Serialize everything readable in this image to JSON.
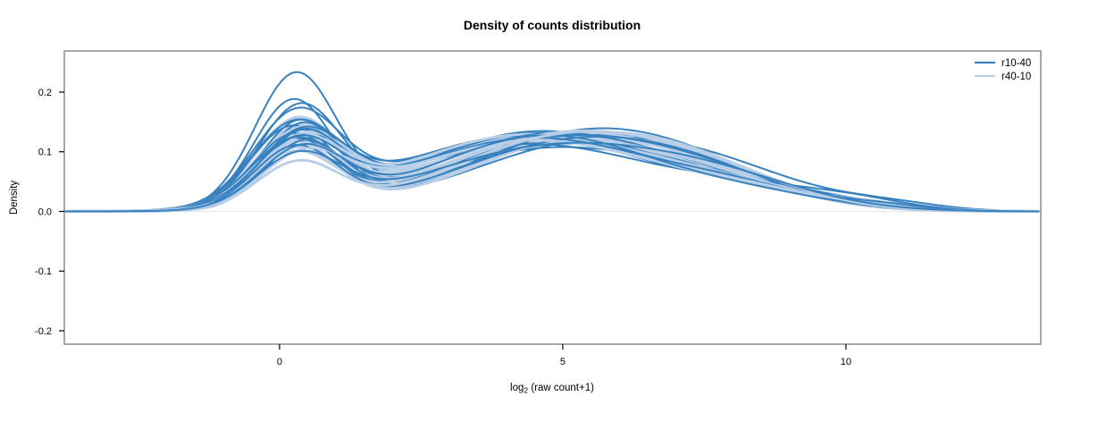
{
  "title": "Density of counts distribution",
  "chart_data": {
    "type": "line",
    "subtype": "density-curves-overlay",
    "title": "Density of counts distribution",
    "xlabel": {
      "prefix": "log",
      "sub": "2",
      "suffix": " (raw count+1)"
    },
    "ylabel": "Density",
    "xlim": [
      -3.8,
      13.44
    ],
    "ylim": [
      -0.2225,
      0.2689
    ],
    "xticks": [
      {
        "label": "0",
        "value": 0
      },
      {
        "label": "5",
        "value": 5
      },
      {
        "label": "10",
        "value": 10
      }
    ],
    "yticks": [
      {
        "label": "0.2",
        "value": 0.2
      },
      {
        "label": "0.1",
        "value": 0.1
      },
      {
        "label": "0.0",
        "value": 0.0
      },
      {
        "label": "-0.1",
        "value": -0.1
      },
      {
        "label": "-0.2",
        "value": -0.2
      }
    ],
    "grid": false,
    "zero_line": {
      "value": 0.0,
      "color": "#e8e8e8"
    },
    "frame_color": "#8c8c8c",
    "legend": {
      "position": "top-right",
      "box": false,
      "entries": [
        {
          "label": "r10-40",
          "color": "#3781bf"
        },
        {
          "label": "r40-10",
          "color": "#b9cfe7"
        }
      ]
    },
    "curve_model": "density(x) = A*exp(-((x-mA)^2)/(2*sA^2)) + B*exp(-((x-mB)^2)/(2*sB^2)) + C*exp(-((x-mC)^2)/(2*sC^2)) + D*exp(-((x-mD)^2)/(2*sD^2)); params per curve = [A,mA,sA,B,mB,sB,C,mC,sC,D,mD,sD]",
    "series": [
      {
        "name": "r10-40",
        "color": "#3781bf",
        "line_width": 2.0,
        "curves": [
          [
            0.222,
            0.28,
            0.72,
            0.105,
            4.8,
            2.15,
            0.028,
            8.0,
            1.45,
            0,
            10,
            0.8
          ],
          [
            0.182,
            0.24,
            0.7,
            0.112,
            5.0,
            2.0,
            0.024,
            8.2,
            1.4,
            0,
            10,
            0.8
          ],
          [
            0.17,
            0.36,
            0.74,
            0.118,
            4.9,
            2.1,
            0.022,
            8.5,
            1.3,
            0.008,
            10.5,
            0.8
          ],
          [
            0.148,
            0.3,
            0.76,
            0.124,
            4.4,
            2.3,
            0.03,
            7.8,
            1.55,
            0,
            10,
            0.8
          ],
          [
            0.143,
            0.42,
            0.71,
            0.118,
            5.1,
            1.95,
            0.021,
            8.1,
            1.25,
            0.006,
            10.0,
            0.7
          ],
          [
            0.138,
            0.22,
            0.75,
            0.119,
            5.2,
            2.05,
            0.034,
            7.6,
            1.5,
            0,
            10,
            0.8
          ],
          [
            0.135,
            0.33,
            0.7,
            0.134,
            4.6,
            2.15,
            0.023,
            8.3,
            1.4,
            0,
            10,
            0.8
          ],
          [
            0.132,
            0.45,
            0.74,
            0.11,
            5.4,
            2.1,
            0.038,
            7.9,
            1.6,
            0.01,
            10.8,
            0.9
          ],
          [
            0.128,
            0.26,
            0.77,
            0.127,
            4.3,
            2.25,
            0.026,
            8.6,
            1.3,
            0,
            10,
            0.8
          ],
          [
            0.125,
            0.38,
            0.71,
            0.121,
            5.0,
            2.15,
            0.031,
            7.7,
            1.5,
            0,
            10,
            0.8
          ],
          [
            0.122,
            0.24,
            0.73,
            0.117,
            4.9,
            2.05,
            0.028,
            8.1,
            1.45,
            0.007,
            9.8,
            0.8
          ],
          [
            0.12,
            0.41,
            0.76,
            0.131,
            4.6,
            2.2,
            0.022,
            8.4,
            1.35,
            0,
            10,
            0.8
          ],
          [
            0.117,
            0.3,
            0.74,
            0.125,
            5.3,
            2.0,
            0.033,
            7.5,
            1.55,
            0,
            10,
            0.8
          ],
          [
            0.114,
            0.36,
            0.72,
            0.113,
            4.4,
            2.3,
            0.027,
            8.7,
            1.4,
            0.009,
            10.3,
            0.85
          ],
          [
            0.112,
            0.26,
            0.78,
            0.129,
            4.8,
            2.1,
            0.024,
            8.0,
            1.5,
            0,
            10,
            0.8
          ],
          [
            0.11,
            0.44,
            0.7,
            0.119,
            5.0,
            2.05,
            0.035,
            7.8,
            1.6,
            0,
            10,
            0.8
          ],
          [
            0.107,
            0.32,
            0.75,
            0.123,
            4.5,
            2.2,
            0.026,
            8.2,
            1.3,
            0,
            10,
            0.8
          ],
          [
            0.104,
            0.28,
            0.73,
            0.115,
            5.2,
            2.1,
            0.03,
            7.6,
            1.5,
            0.008,
            10.6,
            0.75
          ],
          [
            0.1,
            0.4,
            0.76,
            0.127,
            4.7,
            2.0,
            0.021,
            8.5,
            1.4,
            0,
            10,
            0.8
          ],
          [
            0.087,
            0.34,
            0.74,
            0.109,
            4.9,
            2.25,
            0.032,
            7.9,
            1.55,
            0,
            10,
            0.8
          ]
        ]
      },
      {
        "name": "r40-10",
        "color": "#b9cfe7",
        "line_width": 2.9,
        "curves": [
          [
            0.142,
            0.3,
            0.74,
            0.119,
            4.6,
            2.15,
            0.025,
            8.1,
            1.4,
            0,
            10,
            0.8
          ],
          [
            0.137,
            0.38,
            0.71,
            0.114,
            4.9,
            2.05,
            0.03,
            7.7,
            1.5,
            0,
            10,
            0.8
          ],
          [
            0.132,
            0.26,
            0.76,
            0.124,
            4.4,
            2.25,
            0.022,
            8.4,
            1.35,
            0,
            10,
            0.8
          ],
          [
            0.132,
            0.42,
            0.72,
            0.129,
            5.1,
            2.1,
            0.028,
            7.9,
            1.5,
            0,
            10,
            0.8
          ],
          [
            0.127,
            0.33,
            0.75,
            0.117,
            4.7,
            2.3,
            0.033,
            7.5,
            1.6,
            0,
            10,
            0.8
          ],
          [
            0.127,
            0.28,
            0.73,
            0.121,
            5.3,
            2.0,
            0.024,
            8.2,
            1.4,
            0.007,
            10.2,
            0.8
          ],
          [
            0.122,
            0.36,
            0.77,
            0.127,
            4.5,
            2.15,
            0.026,
            8.0,
            1.45,
            0,
            10,
            0.8
          ],
          [
            0.122,
            0.24,
            0.72,
            0.111,
            4.8,
            2.1,
            0.034,
            7.6,
            1.55,
            0,
            10,
            0.8
          ],
          [
            0.117,
            0.4,
            0.74,
            0.125,
            5.0,
            2.2,
            0.02,
            8.6,
            1.3,
            0,
            10,
            0.8
          ],
          [
            0.117,
            0.31,
            0.76,
            0.119,
            4.3,
            2.15,
            0.03,
            7.8,
            1.5,
            0.009,
            10.7,
            0.85
          ],
          [
            0.112,
            0.27,
            0.71,
            0.131,
            5.2,
            2.0,
            0.023,
            8.3,
            1.4,
            0,
            10,
            0.8
          ],
          [
            0.112,
            0.44,
            0.75,
            0.115,
            4.6,
            2.25,
            0.029,
            7.7,
            1.5,
            0,
            10,
            0.8
          ],
          [
            0.107,
            0.34,
            0.73,
            0.123,
            4.9,
            2.1,
            0.025,
            8.1,
            1.45,
            0,
            10,
            0.8
          ],
          [
            0.107,
            0.23,
            0.77,
            0.117,
            5.4,
            2.05,
            0.031,
            7.5,
            1.6,
            0,
            10,
            0.8
          ],
          [
            0.102,
            0.39,
            0.72,
            0.129,
            4.4,
            2.2,
            0.021,
            8.5,
            1.35,
            0.006,
            9.9,
            0.75
          ],
          [
            0.102,
            0.29,
            0.74,
            0.113,
            5.1,
            2.0,
            0.027,
            7.9,
            1.5,
            0,
            10,
            0.8
          ],
          [
            0.097,
            0.37,
            0.76,
            0.121,
            4.7,
            2.15,
            0.024,
            8.2,
            1.4,
            0,
            10,
            0.8
          ],
          [
            0.092,
            0.25,
            0.73,
            0.125,
            5.0,
            2.1,
            0.034,
            7.6,
            1.55,
            0,
            10,
            0.8
          ],
          [
            0.082,
            0.43,
            0.75,
            0.119,
            4.5,
            2.25,
            0.022,
            8.4,
            1.3,
            0,
            10,
            0.8
          ],
          [
            0.077,
            0.32,
            0.72,
            0.127,
            5.2,
            2.1,
            0.028,
            7.8,
            1.5,
            0,
            10,
            0.8
          ]
        ]
      }
    ]
  }
}
